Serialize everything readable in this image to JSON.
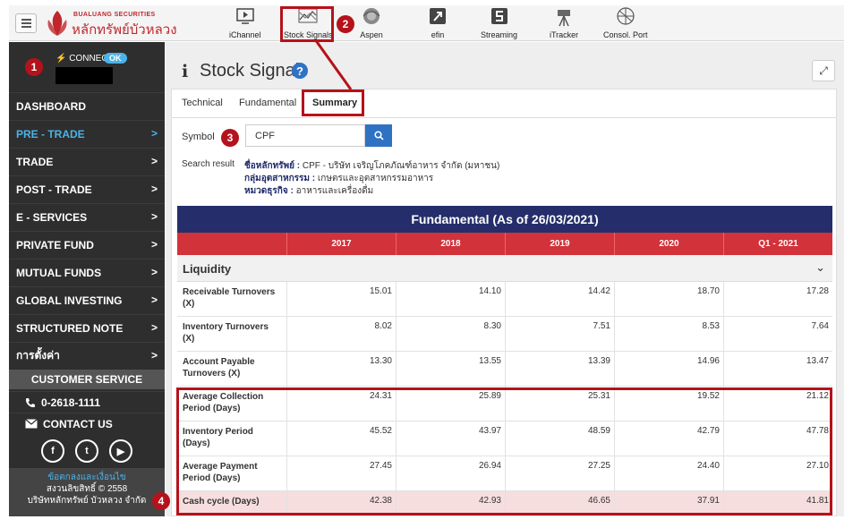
{
  "brand": {
    "name_en": "BUALUANG SECURITIES",
    "name_th": "หลักทรัพย์บัวหลวง",
    "color": "#c0272d"
  },
  "toolbar": {
    "menu_icon": "hamburger-icon",
    "tools": [
      {
        "label": "iChannel",
        "icon": "channel-icon"
      },
      {
        "label": "Stock Signals",
        "icon": "signals-icon"
      },
      {
        "label": "Aspen",
        "icon": "aspen-icon"
      },
      {
        "label": "efin",
        "icon": "efin-icon"
      },
      {
        "label": "Streaming",
        "icon": "streaming-icon"
      },
      {
        "label": "iTracker",
        "icon": "tracker-icon"
      },
      {
        "label": "Consol. Port",
        "icon": "consol-port-icon"
      }
    ]
  },
  "callouts": [
    "1",
    "2",
    "3",
    "4"
  ],
  "sidebar": {
    "connect_label": "CONNECT",
    "connect_status": "OK",
    "items": [
      {
        "label": "DASHBOARD",
        "chevron": ""
      },
      {
        "label": "PRE - TRADE",
        "chevron": ">"
      },
      {
        "label": "TRADE",
        "chevron": ">"
      },
      {
        "label": "POST - TRADE",
        "chevron": ">"
      },
      {
        "label": "E - SERVICES",
        "chevron": ">"
      },
      {
        "label": "PRIVATE FUND",
        "chevron": ">"
      },
      {
        "label": "MUTUAL FUNDS",
        "chevron": ">"
      },
      {
        "label": "GLOBAL INVESTING",
        "chevron": ">"
      },
      {
        "label": "STRUCTURED NOTE",
        "chevron": ">"
      },
      {
        "label": "การตั้งค่า",
        "chevron": ">"
      }
    ],
    "customer_service": {
      "title": "CUSTOMER SERVICE",
      "phone": "0-2618-1111",
      "contact": "CONTACT US",
      "social_icons": [
        "facebook-icon",
        "twitter-icon",
        "youtube-icon"
      ]
    },
    "footer": {
      "terms_link": "ข้อตกลงและเงื่อนไข",
      "copyright": "สงวนลิขสิทธิ์ © 2558",
      "company": "บริษัทหลักทรัพย์ บัวหลวง จำกัด"
    }
  },
  "page": {
    "title": "Stock Signals",
    "help_icon": "?",
    "expand_icon": "⤢",
    "tabs": [
      {
        "label": "Technical"
      },
      {
        "label": "Fundamental"
      },
      {
        "label": "Summary"
      }
    ],
    "active_tab": "Summary"
  },
  "search": {
    "label": "Symbol",
    "value": "CPF",
    "button_icon": "search-icon"
  },
  "search_result": {
    "label": "Search result",
    "lines": [
      {
        "key": "ชื่อหลักทรัพย์ :",
        "value": "CPF - บริษัท เจริญโภคภัณฑ์อาหาร จำกัด (มหาชน)"
      },
      {
        "key": "กลุ่มอุตสาหกรรม :",
        "value": "เกษตรและอุตสาหกรรมอาหาร"
      },
      {
        "key": "หมวดธุรกิจ :",
        "value": "อาหารและเครื่องดื่ม"
      }
    ]
  },
  "table": {
    "title": "Fundamental (As of 26/03/2021)",
    "columns": [
      "",
      "2017",
      "2018",
      "2019",
      "2020",
      "Q1 - 2021"
    ],
    "section": "Liquidity",
    "rows": [
      {
        "label": "Receivable Turnovers (X)",
        "values": [
          "15.01",
          "14.10",
          "14.42",
          "18.70",
          "17.28"
        ]
      },
      {
        "label": "Inventory Turnovers (X)",
        "values": [
          "8.02",
          "8.30",
          "7.51",
          "8.53",
          "7.64"
        ]
      },
      {
        "label": "Account Payable Turnovers (X)",
        "values": [
          "13.30",
          "13.55",
          "13.39",
          "14.96",
          "13.47"
        ]
      },
      {
        "label": "Average Collection Period (Days)",
        "values": [
          "24.31",
          "25.89",
          "25.31",
          "19.52",
          "21.12"
        ]
      },
      {
        "label": "Inventory Period (Days)",
        "values": [
          "45.52",
          "43.97",
          "48.59",
          "42.79",
          "47.78"
        ]
      },
      {
        "label": "Average Payment Period (Days)",
        "values": [
          "27.45",
          "26.94",
          "27.25",
          "24.40",
          "27.10"
        ]
      },
      {
        "label": "Cash cycle (Days)",
        "values": [
          "42.38",
          "42.93",
          "46.65",
          "37.91",
          "41.81"
        ]
      }
    ]
  },
  "colors": {
    "sidebar_bg": "#2e2e2e",
    "accent_blue": "#4ab3e8",
    "table_title_bg": "#252e6b",
    "table_head_bg": "#d2323a",
    "callout_red": "#b5121b",
    "highlight_row": "#f7dede"
  }
}
